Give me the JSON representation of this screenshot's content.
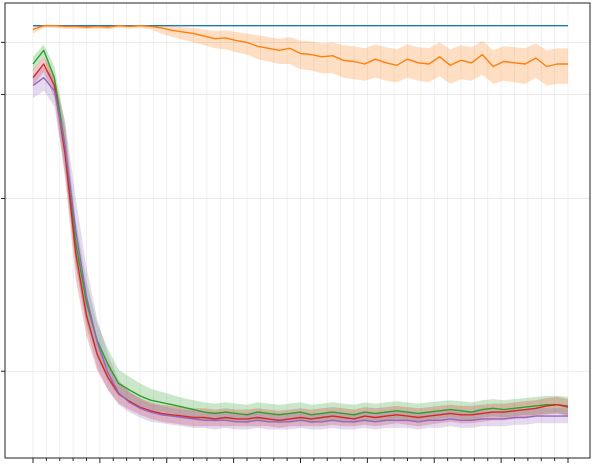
{
  "chart_data": {
    "type": "line",
    "title": "",
    "xlabel": "",
    "ylabel": "",
    "x_range": [
      0,
      100
    ],
    "y_scale": "log",
    "y_range": [
      0.004,
      1.05
    ],
    "grid": true,
    "tick_labels_visible": false,
    "x_ticks_major": [
      0,
      12.5,
      25,
      37.5,
      50,
      62.5,
      75,
      87.5,
      100
    ],
    "y_ticks_major": [
      0.01,
      0.1,
      0.4,
      0.8
    ],
    "x": [
      0,
      2,
      4,
      6,
      8,
      10,
      12,
      14,
      16,
      18,
      20,
      22,
      24,
      26,
      28,
      30,
      32,
      34,
      36,
      38,
      40,
      42,
      44,
      46,
      48,
      50,
      52,
      54,
      56,
      58,
      60,
      62,
      64,
      66,
      68,
      70,
      72,
      74,
      76,
      78,
      80,
      82,
      84,
      86,
      88,
      90,
      92,
      94,
      96,
      98,
      100
    ],
    "series": [
      {
        "color": "#1f77b4",
        "values": [
          1.0,
          1.0,
          1.0,
          1.0,
          1.0,
          1.0,
          1.0,
          1.0,
          1.0,
          1.0,
          1.0,
          1.0,
          1.0,
          1.0,
          1.0,
          1.0,
          1.0,
          1.0,
          1.0,
          1.0,
          1.0,
          1.0,
          1.0,
          1.0,
          1.0,
          1.0,
          1.0,
          1.0,
          1.0,
          1.0,
          1.0,
          1.0,
          1.0,
          1.0,
          1.0,
          1.0,
          1.0,
          1.0,
          1.0,
          1.0,
          1.0,
          1.0,
          1.0,
          1.0,
          1.0,
          1.0,
          1.0,
          1.0,
          1.0,
          1.0,
          1.0
        ],
        "lower": null,
        "upper": null
      },
      {
        "color": "#ff7f0e",
        "values": [
          0.95,
          1.0,
          1.0,
          0.99,
          0.99,
          0.98,
          0.99,
          0.98,
          1.0,
          0.99,
          1.0,
          0.99,
          0.97,
          0.94,
          0.92,
          0.9,
          0.87,
          0.84,
          0.85,
          0.82,
          0.8,
          0.76,
          0.74,
          0.72,
          0.74,
          0.69,
          0.68,
          0.66,
          0.67,
          0.63,
          0.62,
          0.6,
          0.64,
          0.61,
          0.59,
          0.64,
          0.61,
          0.6,
          0.66,
          0.59,
          0.63,
          0.61,
          0.68,
          0.58,
          0.62,
          0.61,
          0.6,
          0.65,
          0.58,
          0.6,
          0.6
        ],
        "lower": [
          0.9,
          0.97,
          0.97,
          0.96,
          0.96,
          0.95,
          0.96,
          0.95,
          0.97,
          0.96,
          0.97,
          0.95,
          0.9,
          0.86,
          0.83,
          0.8,
          0.77,
          0.74,
          0.73,
          0.7,
          0.68,
          0.64,
          0.62,
          0.6,
          0.6,
          0.56,
          0.55,
          0.53,
          0.53,
          0.5,
          0.49,
          0.48,
          0.5,
          0.48,
          0.47,
          0.5,
          0.48,
          0.47,
          0.51,
          0.46,
          0.49,
          0.48,
          0.52,
          0.46,
          0.48,
          0.47,
          0.46,
          0.5,
          0.45,
          0.46,
          0.46
        ],
        "upper": [
          0.99,
          1.0,
          1.0,
          1.0,
          1.0,
          1.0,
          1.0,
          1.0,
          1.0,
          1.0,
          1.0,
          1.0,
          1.0,
          0.99,
          0.98,
          0.97,
          0.95,
          0.93,
          0.94,
          0.92,
          0.9,
          0.88,
          0.86,
          0.84,
          0.86,
          0.82,
          0.81,
          0.79,
          0.8,
          0.77,
          0.76,
          0.74,
          0.78,
          0.75,
          0.73,
          0.78,
          0.75,
          0.74,
          0.8,
          0.73,
          0.77,
          0.75,
          0.82,
          0.72,
          0.76,
          0.75,
          0.74,
          0.79,
          0.72,
          0.74,
          0.74
        ]
      },
      {
        "color": "#2ca02c",
        "values": [
          0.6,
          0.72,
          0.5,
          0.2,
          0.055,
          0.025,
          0.015,
          0.011,
          0.0085,
          0.0078,
          0.0072,
          0.0068,
          0.0066,
          0.0064,
          0.0062,
          0.006,
          0.0058,
          0.0057,
          0.0058,
          0.0057,
          0.0056,
          0.0058,
          0.0057,
          0.0056,
          0.0057,
          0.0058,
          0.0056,
          0.0057,
          0.0058,
          0.0057,
          0.0056,
          0.0058,
          0.0057,
          0.0058,
          0.0059,
          0.0058,
          0.0057,
          0.0058,
          0.0059,
          0.006,
          0.0059,
          0.0058,
          0.006,
          0.0061,
          0.006,
          0.0061,
          0.0062,
          0.0063,
          0.0064,
          0.0064,
          0.0063
        ],
        "lower": [
          0.55,
          0.66,
          0.42,
          0.15,
          0.04,
          0.019,
          0.012,
          0.0088,
          0.0072,
          0.0067,
          0.0063,
          0.006,
          0.0058,
          0.0057,
          0.0055,
          0.0053,
          0.0052,
          0.0051,
          0.0052,
          0.0051,
          0.005,
          0.0052,
          0.0051,
          0.005,
          0.0051,
          0.0052,
          0.005,
          0.0051,
          0.0052,
          0.0051,
          0.005,
          0.0052,
          0.0051,
          0.0052,
          0.0053,
          0.0052,
          0.0051,
          0.0052,
          0.0053,
          0.0054,
          0.0053,
          0.0052,
          0.0054,
          0.0055,
          0.0054,
          0.0055,
          0.0056,
          0.0056,
          0.0057,
          0.0057,
          0.0056
        ],
        "upper": [
          0.66,
          0.78,
          0.58,
          0.27,
          0.075,
          0.033,
          0.019,
          0.0135,
          0.0102,
          0.0093,
          0.0085,
          0.0079,
          0.0076,
          0.0073,
          0.007,
          0.0068,
          0.0066,
          0.0065,
          0.0066,
          0.0065,
          0.0064,
          0.0066,
          0.0065,
          0.0064,
          0.0065,
          0.0066,
          0.0064,
          0.0065,
          0.0066,
          0.0065,
          0.0064,
          0.0066,
          0.0065,
          0.0066,
          0.0067,
          0.0066,
          0.0065,
          0.0066,
          0.0067,
          0.0068,
          0.0067,
          0.0066,
          0.0068,
          0.0069,
          0.0068,
          0.0069,
          0.007,
          0.0071,
          0.0072,
          0.0072,
          0.0071
        ]
      },
      {
        "color": "#d62728",
        "values": [
          0.5,
          0.6,
          0.45,
          0.18,
          0.048,
          0.021,
          0.0125,
          0.0092,
          0.0074,
          0.0067,
          0.0062,
          0.0059,
          0.0057,
          0.0056,
          0.0055,
          0.0054,
          0.0054,
          0.0053,
          0.0054,
          0.0053,
          0.0053,
          0.0054,
          0.0053,
          0.0052,
          0.0053,
          0.0054,
          0.0053,
          0.0054,
          0.0055,
          0.0054,
          0.0053,
          0.0055,
          0.0054,
          0.0055,
          0.0056,
          0.0055,
          0.0054,
          0.0055,
          0.0056,
          0.0057,
          0.0056,
          0.0056,
          0.0057,
          0.0058,
          0.0058,
          0.0059,
          0.006,
          0.0061,
          0.0063,
          0.0064,
          0.0062
        ],
        "lower": [
          0.45,
          0.54,
          0.38,
          0.13,
          0.034,
          0.016,
          0.0101,
          0.0078,
          0.0065,
          0.006,
          0.0056,
          0.0053,
          0.0051,
          0.005,
          0.0049,
          0.0048,
          0.0048,
          0.0048,
          0.0048,
          0.0048,
          0.0048,
          0.0048,
          0.0048,
          0.0047,
          0.0048,
          0.0048,
          0.0048,
          0.0048,
          0.0049,
          0.0048,
          0.0048,
          0.0049,
          0.0048,
          0.0049,
          0.005,
          0.0049,
          0.0048,
          0.0049,
          0.005,
          0.0051,
          0.005,
          0.005,
          0.0051,
          0.0052,
          0.0052,
          0.0053,
          0.0054,
          0.0055,
          0.0056,
          0.0057,
          0.0055
        ],
        "upper": [
          0.56,
          0.66,
          0.52,
          0.25,
          0.066,
          0.028,
          0.0155,
          0.011,
          0.0085,
          0.0076,
          0.007,
          0.0066,
          0.0064,
          0.0063,
          0.0062,
          0.0061,
          0.0061,
          0.006,
          0.0061,
          0.006,
          0.006,
          0.0061,
          0.006,
          0.0059,
          0.006,
          0.0061,
          0.006,
          0.0061,
          0.0062,
          0.0061,
          0.006,
          0.0062,
          0.0061,
          0.0062,
          0.0063,
          0.0062,
          0.0061,
          0.0062,
          0.0063,
          0.0064,
          0.0063,
          0.0063,
          0.0064,
          0.0065,
          0.0065,
          0.0066,
          0.0067,
          0.0068,
          0.007,
          0.0071,
          0.0069
        ]
      },
      {
        "color": "#9467bd",
        "values": [
          0.45,
          0.5,
          0.42,
          0.2,
          0.065,
          0.027,
          0.0148,
          0.0098,
          0.0075,
          0.0066,
          0.0061,
          0.0058,
          0.0056,
          0.0055,
          0.0054,
          0.0053,
          0.0052,
          0.0052,
          0.0052,
          0.0051,
          0.0051,
          0.0052,
          0.0051,
          0.0051,
          0.0051,
          0.0052,
          0.0051,
          0.0051,
          0.0052,
          0.0051,
          0.0051,
          0.0052,
          0.0051,
          0.0052,
          0.0052,
          0.0052,
          0.0051,
          0.0052,
          0.0052,
          0.0053,
          0.0052,
          0.0052,
          0.0053,
          0.0053,
          0.0053,
          0.0054,
          0.0054,
          0.0055,
          0.0055,
          0.0055,
          0.0055
        ],
        "lower": [
          0.38,
          0.42,
          0.34,
          0.14,
          0.042,
          0.018,
          0.0105,
          0.0078,
          0.0064,
          0.0058,
          0.0054,
          0.0051,
          0.005,
          0.0049,
          0.0048,
          0.0047,
          0.0047,
          0.0046,
          0.0047,
          0.0046,
          0.0046,
          0.0047,
          0.0046,
          0.0046,
          0.0046,
          0.0047,
          0.0046,
          0.0046,
          0.0047,
          0.0046,
          0.0046,
          0.0047,
          0.0046,
          0.0047,
          0.0047,
          0.0047,
          0.0046,
          0.0047,
          0.0047,
          0.0048,
          0.0047,
          0.0047,
          0.0048,
          0.0048,
          0.0048,
          0.0049,
          0.0049,
          0.005,
          0.005,
          0.005,
          0.005
        ],
        "upper": [
          0.52,
          0.58,
          0.5,
          0.28,
          0.1,
          0.04,
          0.02,
          0.0125,
          0.0089,
          0.0076,
          0.0069,
          0.0065,
          0.0063,
          0.0061,
          0.006,
          0.0059,
          0.0058,
          0.0058,
          0.0058,
          0.0057,
          0.0057,
          0.0058,
          0.0057,
          0.0057,
          0.0057,
          0.0058,
          0.0057,
          0.0057,
          0.0058,
          0.0057,
          0.0057,
          0.0058,
          0.0057,
          0.0058,
          0.0058,
          0.0058,
          0.0057,
          0.0058,
          0.0058,
          0.0059,
          0.0058,
          0.0058,
          0.0059,
          0.0059,
          0.0059,
          0.006,
          0.006,
          0.0061,
          0.0061,
          0.0061,
          0.0061
        ]
      }
    ]
  }
}
